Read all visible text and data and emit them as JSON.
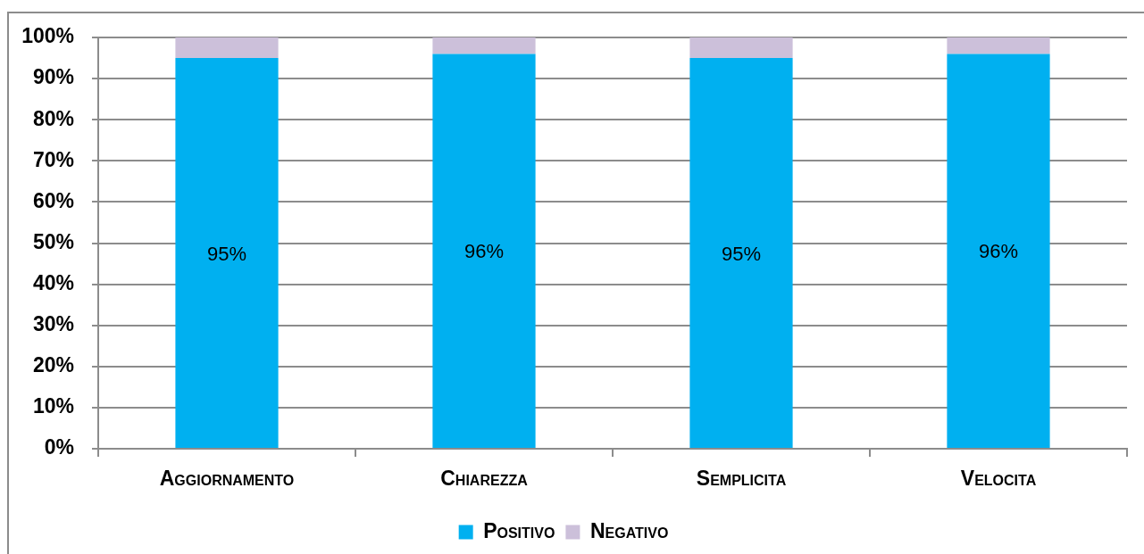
{
  "chart_data": {
    "type": "bar",
    "categories": [
      "Aggiornamento",
      "Chiarezza",
      "Semplicita",
      "Velocita"
    ],
    "stacked": true,
    "series": [
      {
        "name": "Positivo",
        "color": "#00b0f0",
        "values": [
          95,
          96,
          95,
          96
        ],
        "value_labels": [
          "95%",
          "96%",
          "95%",
          "96%"
        ]
      },
      {
        "name": "Negativo",
        "color": "#ccc0da",
        "values": [
          5,
          4,
          5,
          4
        ]
      }
    ],
    "ylim": [
      0,
      100
    ],
    "yticks": [
      {
        "value": 0,
        "label": "0%"
      },
      {
        "value": 10,
        "label": "10%"
      },
      {
        "value": 20,
        "label": "20%"
      },
      {
        "value": 30,
        "label": "30%"
      },
      {
        "value": 40,
        "label": "40%"
      },
      {
        "value": 50,
        "label": "50%"
      },
      {
        "value": 60,
        "label": "60%"
      },
      {
        "value": 70,
        "label": "70%"
      },
      {
        "value": 80,
        "label": "80%"
      },
      {
        "value": 90,
        "label": "90%"
      },
      {
        "value": 100,
        "label": "100%"
      }
    ],
    "grid": "y",
    "legend": "bottom"
  }
}
